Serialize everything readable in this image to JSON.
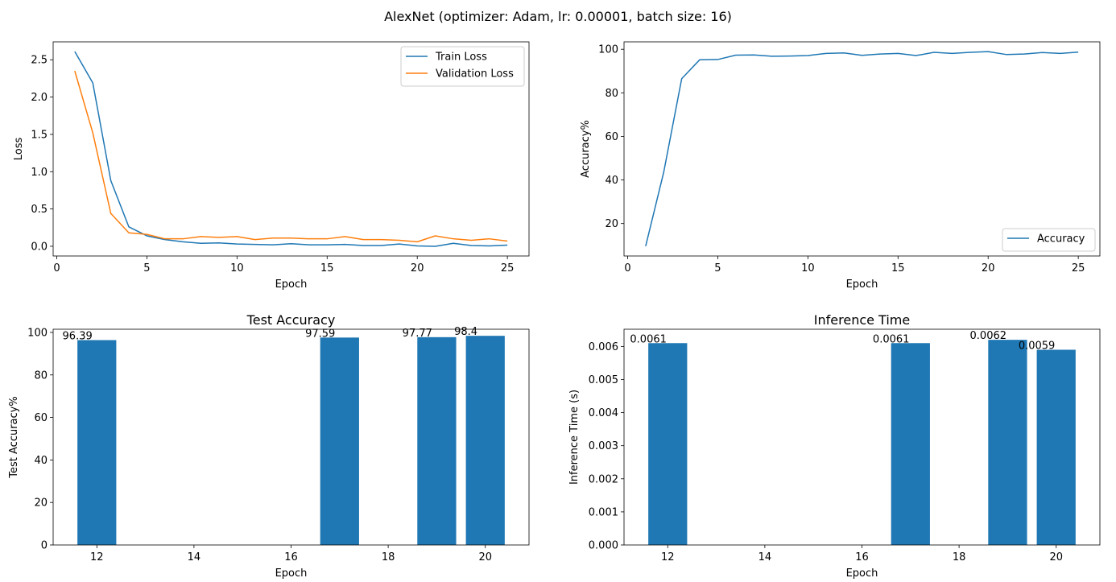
{
  "suptitle": "AlexNet (optimizer: Adam, lr: 0.00001, batch size: 16)",
  "colors": {
    "blue": "#1f77b4",
    "orange": "#ff7f0e"
  },
  "chart_data": [
    {
      "type": "line",
      "title": "",
      "xlabel": "Epoch",
      "ylabel": "Loss",
      "xlim": [
        -0.2,
        26.2
      ],
      "ylim": [
        -0.13,
        2.74
      ],
      "xticks": [
        0,
        5,
        10,
        15,
        20,
        25
      ],
      "yticks": [
        0.0,
        0.5,
        1.0,
        1.5,
        2.0,
        2.5
      ],
      "ytick_labels": [
        "0.0",
        "0.5",
        "1.0",
        "1.5",
        "2.0",
        "2.5"
      ],
      "legend": "top-right",
      "grid": false,
      "x": [
        1,
        2,
        3,
        4,
        5,
        6,
        7,
        8,
        9,
        10,
        11,
        12,
        13,
        14,
        15,
        16,
        17,
        18,
        19,
        20,
        21,
        22,
        23,
        24,
        25
      ],
      "series": [
        {
          "name": "Train Loss",
          "color": "blue",
          "values": [
            2.61,
            2.19,
            0.88,
            0.26,
            0.14,
            0.09,
            0.06,
            0.04,
            0.045,
            0.03,
            0.025,
            0.02,
            0.035,
            0.02,
            0.02,
            0.025,
            0.01,
            0.01,
            0.03,
            0.005,
            0.0,
            0.04,
            0.01,
            0.005,
            0.015
          ]
        },
        {
          "name": "Validation Loss",
          "color": "orange",
          "values": [
            2.35,
            1.52,
            0.44,
            0.18,
            0.16,
            0.1,
            0.1,
            0.13,
            0.12,
            0.13,
            0.09,
            0.11,
            0.11,
            0.1,
            0.1,
            0.13,
            0.09,
            0.09,
            0.08,
            0.06,
            0.14,
            0.1,
            0.08,
            0.1,
            0.07
          ]
        }
      ]
    },
    {
      "type": "line",
      "title": "",
      "xlabel": "Epoch",
      "ylabel": "Accuracy%",
      "xlim": [
        -0.2,
        26.2
      ],
      "ylim": [
        5.1,
        103.4
      ],
      "xticks": [
        0,
        5,
        10,
        15,
        20,
        25
      ],
      "yticks": [
        20,
        40,
        60,
        80,
        100
      ],
      "ytick_labels": [
        "20",
        "40",
        "60",
        "80",
        "100"
      ],
      "legend": "bottom-right",
      "grid": false,
      "x": [
        1,
        2,
        3,
        4,
        5,
        6,
        7,
        8,
        9,
        10,
        11,
        12,
        13,
        14,
        15,
        16,
        17,
        18,
        19,
        20,
        21,
        22,
        23,
        24,
        25
      ],
      "series": [
        {
          "name": "Accuracy",
          "color": "blue",
          "values": [
            9.6,
            43.5,
            86.5,
            95.2,
            95.3,
            97.3,
            97.4,
            96.8,
            96.9,
            97.1,
            98.1,
            98.3,
            97.2,
            97.8,
            98.1,
            97.1,
            98.6,
            98.1,
            98.6,
            98.9,
            97.6,
            97.8,
            98.5,
            98.1,
            98.7
          ]
        }
      ]
    },
    {
      "type": "bar",
      "title": "Test Accuracy",
      "xlabel": "Epoch",
      "ylabel": "Test Accuracy%",
      "xlim": [
        11.1,
        20.9
      ],
      "ylim": [
        0,
        101.5
      ],
      "xticks": [
        12,
        14,
        16,
        18,
        20
      ],
      "yticks": [
        0,
        20,
        40,
        60,
        80,
        100
      ],
      "ytick_labels": [
        "0",
        "20",
        "40",
        "60",
        "80",
        "100"
      ],
      "bar_width": 0.8,
      "color": "blue",
      "x": [
        12,
        17,
        19,
        20
      ],
      "values": [
        96.39,
        97.59,
        97.77,
        98.4
      ],
      "data_labels": [
        "96.39",
        "97.59",
        "97.77",
        "98.4"
      ]
    },
    {
      "type": "bar",
      "title": "Inference Time",
      "xlabel": "Epoch",
      "ylabel": "Inference Time (s)",
      "xlim": [
        11.1,
        20.9
      ],
      "ylim": [
        0,
        0.00652
      ],
      "xticks": [
        12,
        14,
        16,
        18,
        20
      ],
      "yticks": [
        0.0,
        0.001,
        0.002,
        0.003,
        0.004,
        0.005,
        0.006
      ],
      "ytick_labels": [
        "0.000",
        "0.001",
        "0.002",
        "0.003",
        "0.004",
        "0.005",
        "0.006"
      ],
      "bar_width": 0.8,
      "color": "blue",
      "x": [
        12,
        17,
        19,
        20
      ],
      "values": [
        0.0061,
        0.0061,
        0.0062,
        0.0059
      ],
      "data_labels": [
        "0.0061",
        "0.0061",
        "0.0062",
        "0.0059"
      ]
    }
  ]
}
